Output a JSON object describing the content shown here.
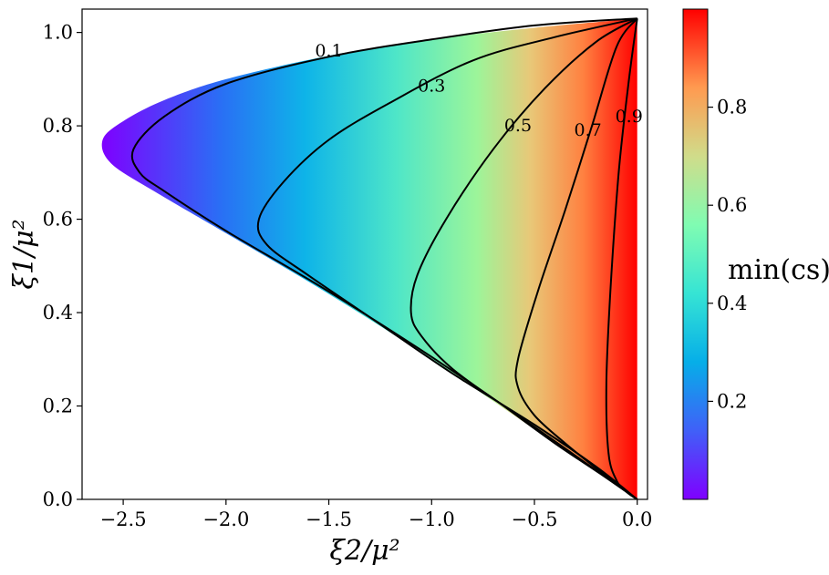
{
  "chart_data": {
    "type": "heatmap",
    "title": "",
    "xlabel": "ξ2/μ²",
    "ylabel": "ξ1/μ²",
    "xlim": [
      -2.7,
      0.05
    ],
    "ylim": [
      0,
      1.05
    ],
    "x_ticks": [
      {
        "value": -2.5,
        "label": "−2.5"
      },
      {
        "value": -2.0,
        "label": "−2.0"
      },
      {
        "value": -1.5,
        "label": "−1.5"
      },
      {
        "value": -1.0,
        "label": "−1.0"
      },
      {
        "value": -0.5,
        "label": "−0.5"
      },
      {
        "value": 0.0,
        "label": "0.0"
      }
    ],
    "y_ticks": [
      {
        "value": 0.0,
        "label": "0.0"
      },
      {
        "value": 0.2,
        "label": "0.2"
      },
      {
        "value": 0.4,
        "label": "0.4"
      },
      {
        "value": 0.6,
        "label": "0.6"
      },
      {
        "value": 0.8,
        "label": "0.8"
      },
      {
        "value": 1.0,
        "label": "1.0"
      }
    ],
    "colorbar": {
      "label": "min(cs)",
      "range": [
        0,
        1
      ],
      "colormap": "rainbow",
      "ticks": [
        {
          "value": 0.2,
          "label": "0.2"
        },
        {
          "value": 0.4,
          "label": "0.4"
        },
        {
          "value": 0.6,
          "label": "0.6"
        },
        {
          "value": 0.8,
          "label": "0.8"
        }
      ]
    },
    "region": {
      "upper_vertex": [
        0.0,
        1.03
      ],
      "lower_vertex": [
        0.0,
        0.0
      ],
      "outer_boundary": [
        [
          0.0,
          1.03
        ],
        [
          -0.5,
          1.01
        ],
        [
          -1.0,
          0.985
        ],
        [
          -1.5,
          0.95
        ],
        [
          -2.0,
          0.9
        ],
        [
          -2.3,
          0.855
        ],
        [
          -2.5,
          0.81
        ],
        [
          -2.6,
          0.77
        ],
        [
          -2.56,
          0.72
        ],
        [
          -2.35,
          0.66
        ],
        [
          -2.0,
          0.57
        ],
        [
          -1.5,
          0.44
        ],
        [
          -1.0,
          0.3
        ],
        [
          -0.5,
          0.15
        ],
        [
          0.0,
          0.0
        ]
      ]
    },
    "contours": [
      {
        "level": 0.1,
        "label": "0.1",
        "label_at": [
          -1.5,
          0.96
        ],
        "points": [
          [
            0.0,
            1.03
          ],
          [
            -0.5,
            1.015
          ],
          [
            -1.0,
            0.985
          ],
          [
            -1.5,
            0.948
          ],
          [
            -2.0,
            0.89
          ],
          [
            -2.3,
            0.82
          ],
          [
            -2.45,
            0.75
          ],
          [
            -2.42,
            0.7
          ],
          [
            -2.3,
            0.66
          ],
          [
            -2.0,
            0.575
          ],
          [
            -1.5,
            0.445
          ],
          [
            -1.0,
            0.305
          ],
          [
            -0.5,
            0.155
          ],
          [
            0.0,
            0.0
          ]
        ]
      },
      {
        "level": 0.3,
        "label": "0.3",
        "label_at": [
          -1.0,
          0.885
        ],
        "points": [
          [
            0.0,
            1.03
          ],
          [
            -0.4,
            0.99
          ],
          [
            -0.8,
            0.94
          ],
          [
            -1.2,
            0.85
          ],
          [
            -1.5,
            0.77
          ],
          [
            -1.72,
            0.68
          ],
          [
            -1.84,
            0.6
          ],
          [
            -1.8,
            0.545
          ],
          [
            -1.6,
            0.48
          ],
          [
            -1.3,
            0.39
          ],
          [
            -0.9,
            0.27
          ],
          [
            -0.5,
            0.16
          ],
          [
            -0.2,
            0.07
          ],
          [
            0.0,
            0.0
          ]
        ]
      },
      {
        "level": 0.5,
        "label": "0.5",
        "label_at": [
          -0.58,
          0.8
        ],
        "points": [
          [
            0.0,
            1.03
          ],
          [
            -0.2,
            0.98
          ],
          [
            -0.45,
            0.88
          ],
          [
            -0.7,
            0.75
          ],
          [
            -0.93,
            0.6
          ],
          [
            -1.07,
            0.48
          ],
          [
            -1.1,
            0.4
          ],
          [
            -1.05,
            0.35
          ],
          [
            -0.9,
            0.28
          ],
          [
            -0.65,
            0.2
          ],
          [
            -0.4,
            0.12
          ],
          [
            -0.18,
            0.055
          ],
          [
            0.0,
            0.0
          ]
        ]
      },
      {
        "level": 0.7,
        "label": "0.7",
        "label_at": [
          -0.24,
          0.79
        ],
        "points": [
          [
            0.0,
            1.03
          ],
          [
            -0.1,
            0.97
          ],
          [
            -0.22,
            0.8
          ],
          [
            -0.35,
            0.62
          ],
          [
            -0.48,
            0.45
          ],
          [
            -0.58,
            0.3
          ],
          [
            -0.58,
            0.24
          ],
          [
            -0.5,
            0.18
          ],
          [
            -0.35,
            0.12
          ],
          [
            -0.18,
            0.06
          ],
          [
            0.0,
            0.0
          ]
        ]
      },
      {
        "level": 0.9,
        "label": "0.9",
        "label_at": [
          -0.04,
          0.82
        ],
        "points": [
          [
            0.0,
            1.03
          ],
          [
            -0.04,
            0.9
          ],
          [
            -0.09,
            0.7
          ],
          [
            -0.13,
            0.45
          ],
          [
            -0.15,
            0.25
          ],
          [
            -0.14,
            0.1
          ],
          [
            -0.1,
            0.04
          ],
          [
            -0.05,
            0.015
          ],
          [
            0.0,
            0.0
          ]
        ]
      }
    ]
  }
}
